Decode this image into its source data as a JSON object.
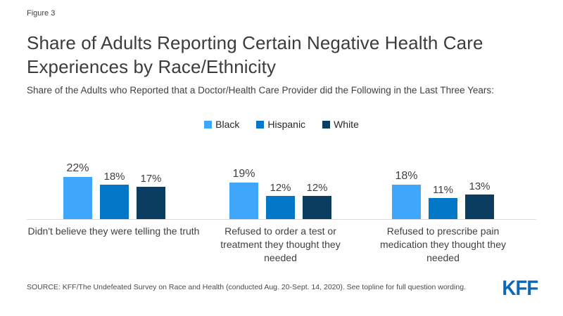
{
  "figure_label": "Figure 3",
  "title": "Share of Adults Reporting Certain Negative Health Care Experiences by Race/Ethnicity",
  "subtitle": "Share of the Adults who Reported that a Doctor/Health Care Provider did the Following in the Last Three Years:",
  "source": "SOURCE: KFF/The Undefeated Survey on Race and Health (conducted Aug. 20-Sept. 14, 2020). See topline for full question wording.",
  "logo_text": "KFF",
  "colors": {
    "black_series": "#3fa7fb",
    "hispanic_series": "#0277c8",
    "white_series": "#0b3d61",
    "logo_blue": "#0c67b5",
    "axis_line": "#dcdcdc",
    "text_dark": "#404040"
  },
  "chart_data": {
    "type": "bar",
    "categories": [
      "Didn't believe they were telling the truth",
      "Refused to order a test or treatment they thought they needed",
      "Refused to prescribe pain medication they thought they needed"
    ],
    "series": [
      {
        "name": "Black",
        "color": "#3fa7fb",
        "values": [
          22,
          19,
          18
        ]
      },
      {
        "name": "Hispanic",
        "color": "#0277c8",
        "values": [
          18,
          12,
          11
        ]
      },
      {
        "name": "White",
        "color": "#0b3d61",
        "values": [
          17,
          12,
          13
        ]
      }
    ],
    "value_suffix": "%",
    "ylim": [
      0,
      25
    ],
    "grid": false,
    "legend_position": "top",
    "xlabel": "",
    "ylabel": ""
  }
}
